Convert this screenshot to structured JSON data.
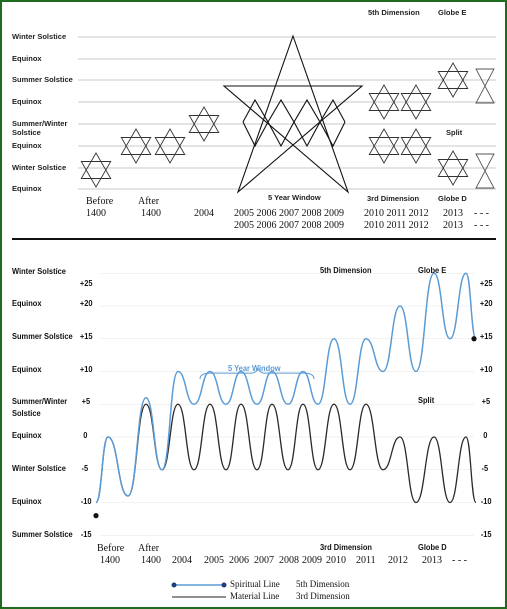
{
  "top_panel": {
    "row_labels": [
      "Winter Solstice",
      "Equinox",
      "Summer Solstice",
      "Equinox",
      "Summer/Winter",
      "Solstice",
      "Equinox",
      "Winter Solstice",
      "Equinox"
    ],
    "header_5th": "5th Dimension",
    "header_globe_e": "Globe E",
    "split": "Split",
    "five_year_window": "5 Year Window",
    "third_dimension": "3rd Dimension",
    "globe_d": "Globe D",
    "years_top": [
      "Before",
      "After",
      "2004",
      "2005 2006 2007 2008 2009",
      "2010 2011 2012",
      "2013",
      "- - -"
    ],
    "years_sub": [
      "1400",
      "1400",
      "",
      "2005 2006 2007 2008 2009",
      "2010 2011 2012",
      "2013",
      "- - -"
    ]
  },
  "bottom_panel": {
    "left_labels": [
      "Winter Solstice",
      "Equinox",
      "Summer Solstice",
      "Equinox",
      "Summer/Winter",
      "Solstice",
      "Equinox",
      "Winter Solstice",
      "Equinox",
      "Summer Solstice"
    ],
    "left_ticks": [
      "+25",
      "+20",
      "+15",
      "+10",
      "+5",
      "0",
      "-5",
      "-10",
      "-15"
    ],
    "right_ticks": [
      "+25",
      "+20",
      "+15",
      "+10",
      "+5",
      "0",
      "-5",
      "-10",
      "-15"
    ],
    "fifth_dimension": "5th Dimension",
    "globe_e": "Globe E",
    "five_year_window": "5 Year Window",
    "split": "Split",
    "third_dimension": "3rd Dimension",
    "globe_d": "Globe D",
    "x_labels": [
      {
        "top": "Before",
        "bottom": "1400"
      },
      {
        "top": "After",
        "bottom": "1400"
      },
      {
        "top": "",
        "bottom": "2004"
      },
      {
        "top": "",
        "bottom": "2005"
      },
      {
        "top": "",
        "bottom": "2006"
      },
      {
        "top": "",
        "bottom": "2007"
      },
      {
        "top": "",
        "bottom": "2008"
      },
      {
        "top": "",
        "bottom": "2009"
      },
      {
        "top": "",
        "bottom": "2010"
      },
      {
        "top": "",
        "bottom": "2011"
      },
      {
        "top": "",
        "bottom": "2012"
      },
      {
        "top": "",
        "bottom": "2013"
      },
      {
        "top": "",
        "bottom": "- - -"
      }
    ]
  },
  "legend": {
    "spiritual": "Spiritual Line",
    "spiritual_dim": "5th Dimension",
    "material": "Material Line",
    "material_dim": "3rd Dimension"
  },
  "colors": {
    "border": "#1e6b1e",
    "spiritual": "#5b9bd5",
    "material": "#222222"
  }
}
